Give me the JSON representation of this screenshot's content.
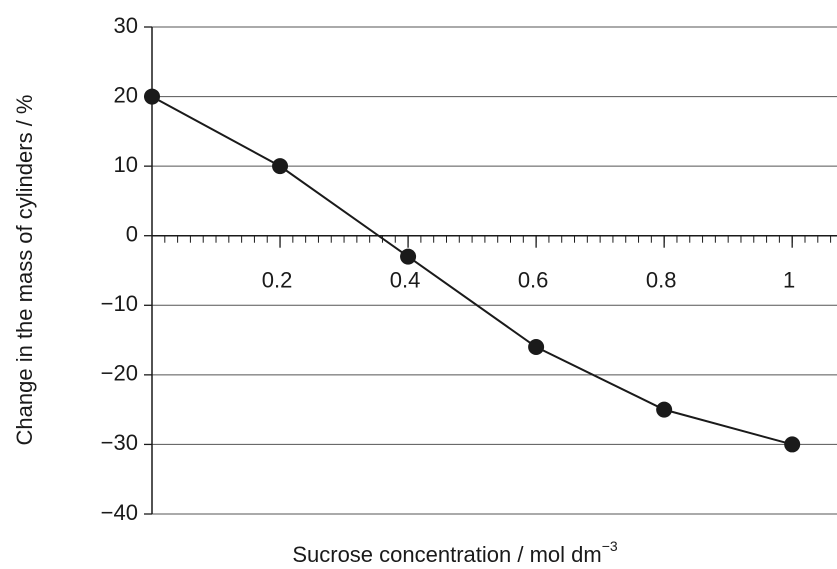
{
  "chart_data": {
    "type": "line",
    "xlabel": "Sucrose concentration / mol dm",
    "xlabel_sup": "−3",
    "ylabel": "Change in the mass of cylinders / %",
    "x": [
      0,
      0.2,
      0.4,
      0.6,
      0.8,
      1
    ],
    "series": [
      {
        "color": "#1a1a1a",
        "values": [
          20,
          10,
          -3,
          -16,
          -25,
          -30
        ]
      }
    ],
    "xlim": [
      0,
      1.07
    ],
    "ylim": [
      -40,
      30
    ],
    "xticks": [
      0.2,
      0.4,
      0.6,
      0.8,
      1
    ],
    "xminorticks": [
      0.02,
      0.04,
      0.06,
      0.08,
      0.1,
      0.12,
      0.14,
      0.16,
      0.18,
      0.2,
      0.22,
      0.24,
      0.26,
      0.28,
      0.3,
      0.32,
      0.34,
      0.36,
      0.38,
      0.4,
      0.42,
      0.44,
      0.46,
      0.48,
      0.5,
      0.52,
      0.54,
      0.56,
      0.58,
      0.6,
      0.62,
      0.64,
      0.66,
      0.68,
      0.7,
      0.72,
      0.74,
      0.76,
      0.78,
      0.8,
      0.82,
      0.84,
      0.86,
      0.88,
      0.9,
      0.92,
      0.94,
      0.96,
      0.98,
      1,
      1.02,
      1.04,
      1.06
    ],
    "yticks": [
      {
        "value": -40,
        "label": "−40"
      },
      {
        "value": -30,
        "label": "−30"
      },
      {
        "value": -20,
        "label": "−20"
      },
      {
        "value": -10,
        "label": "−10"
      },
      0,
      10,
      20,
      30
    ],
    "grid": true
  }
}
